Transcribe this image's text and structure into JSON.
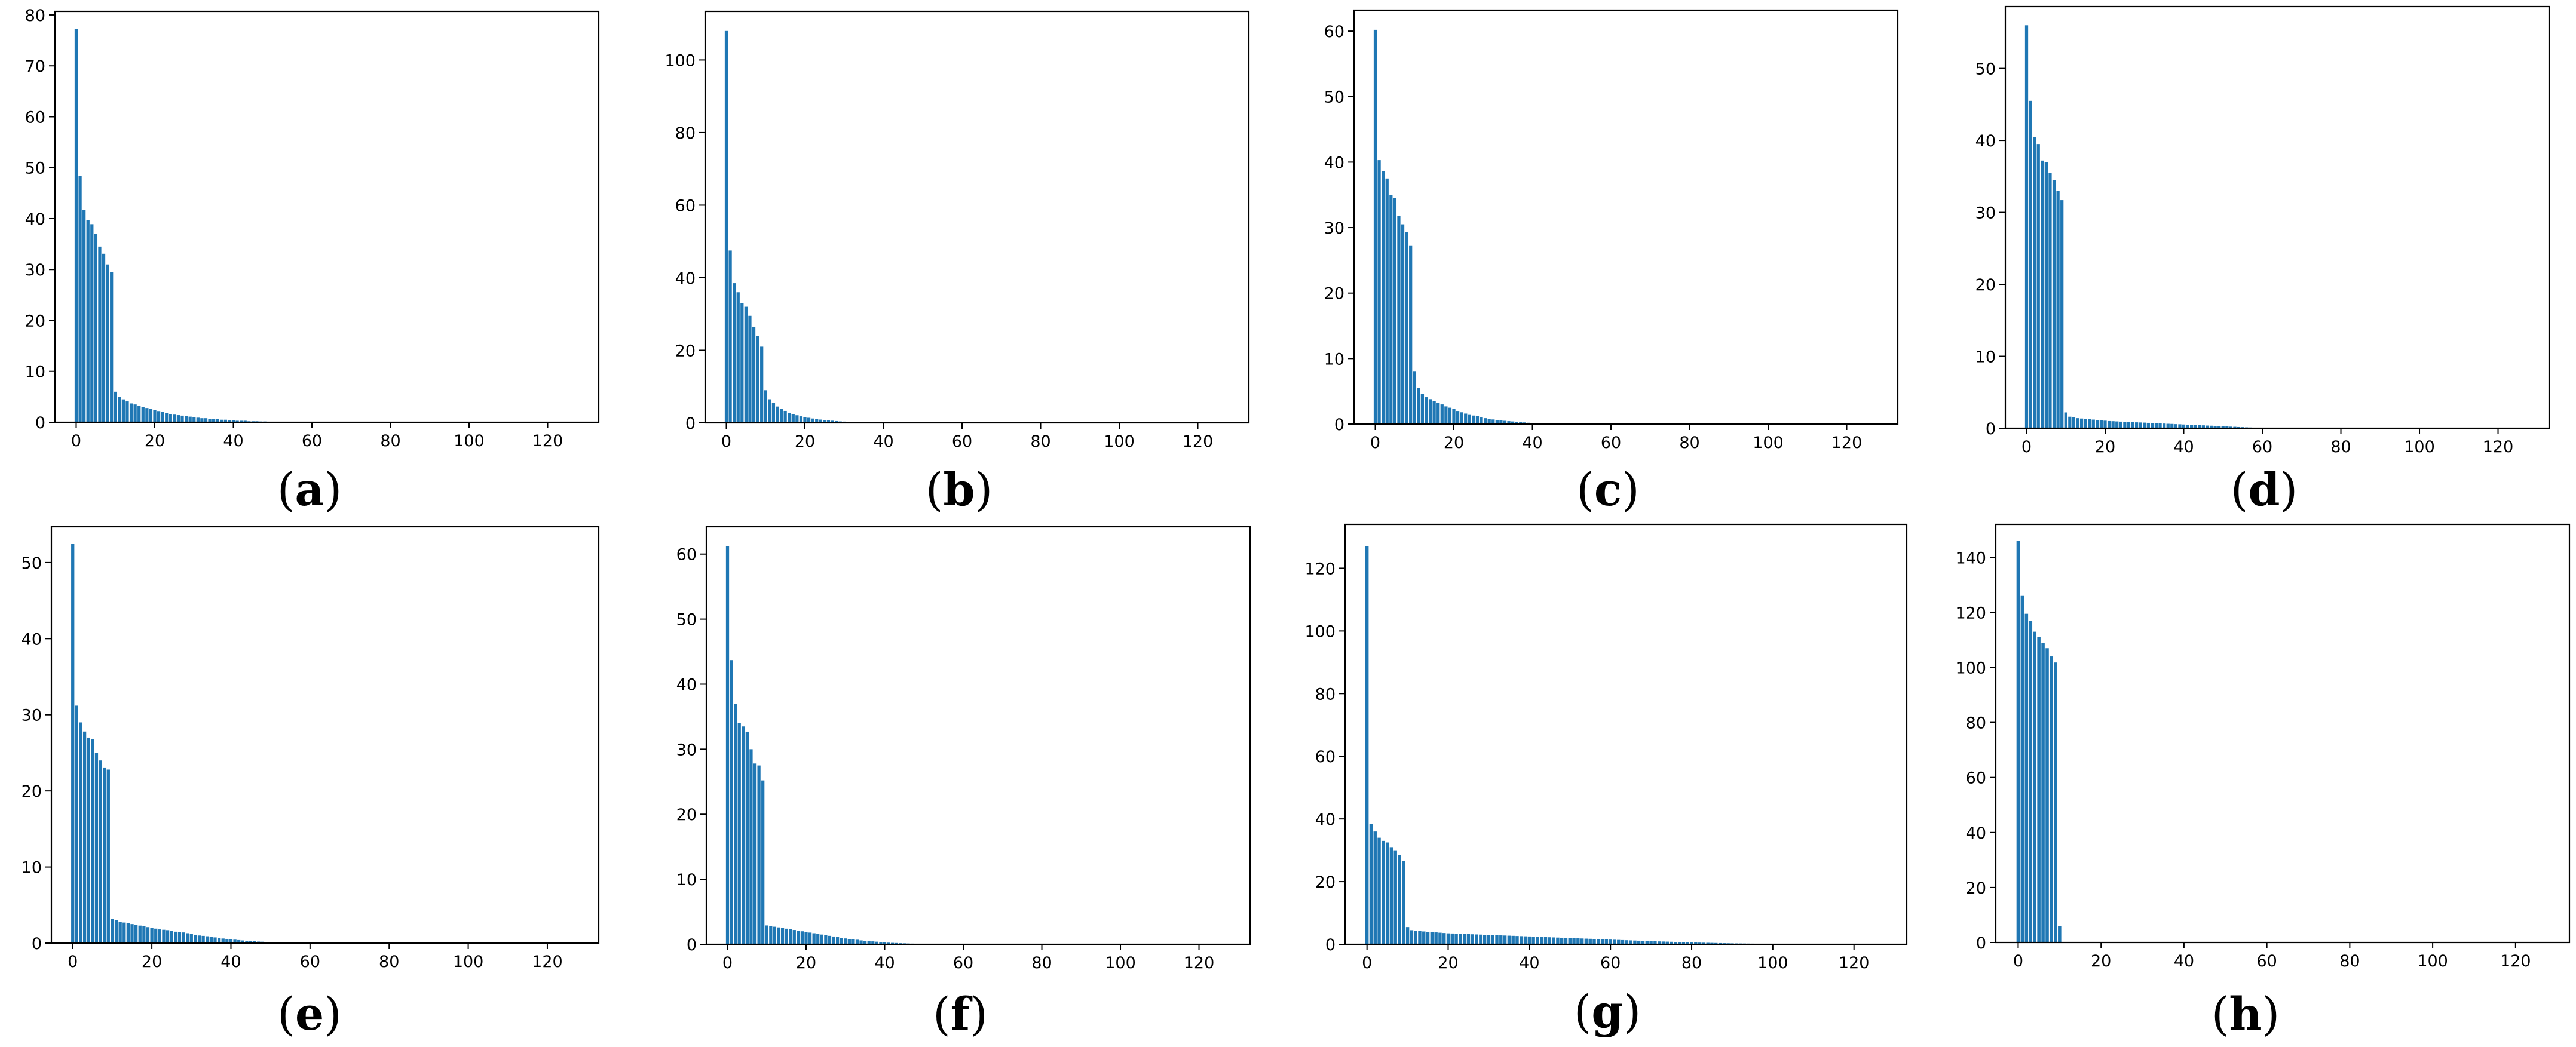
{
  "colors": {
    "bar": "#1f77b4",
    "axes": "#000000",
    "background": "#ffffff"
  },
  "chart_data": [
    {
      "type": "bar",
      "panel_label": "a",
      "title": "",
      "xlabel": "",
      "ylabel": "",
      "grid": false,
      "xlim": [
        -5.4,
        133
      ],
      "ylim": [
        0,
        80.7
      ],
      "xticks": [
        0,
        20,
        40,
        60,
        80,
        100,
        120
      ],
      "yticks": [
        0,
        10,
        20,
        30,
        40,
        50,
        60,
        70,
        80
      ],
      "values": [
        77.2,
        48.4,
        41.7,
        39.7,
        38.9,
        37.0,
        34.5,
        33.1,
        31.0,
        29.5,
        6.0,
        5.0,
        4.5,
        4.1,
        3.7,
        3.5,
        3.2,
        3.0,
        2.8,
        2.6,
        2.4,
        2.2,
        2.0,
        1.8,
        1.6,
        1.5,
        1.4,
        1.3,
        1.2,
        1.1,
        1.0,
        0.9,
        0.8,
        0.8,
        0.7,
        0.6,
        0.6,
        0.5,
        0.5,
        0.4,
        0.4,
        0.3,
        0.3,
        0.3,
        0.2,
        0.2,
        0.2,
        0.15,
        0.15,
        0.1,
        0.1,
        0.1,
        0.08,
        0.06,
        0.05,
        0.04,
        0.03,
        0.02,
        0.02,
        0.01
      ]
    },
    {
      "type": "bar",
      "panel_label": "b",
      "title": "",
      "xlabel": "",
      "ylabel": "",
      "grid": false,
      "xlim": [
        -5.4,
        133
      ],
      "ylim": [
        0,
        113.4
      ],
      "xticks": [
        0,
        20,
        40,
        60,
        80,
        100,
        120
      ],
      "yticks": [
        0,
        20,
        40,
        60,
        80,
        100
      ],
      "values": [
        108.0,
        47.5,
        38.5,
        36.0,
        33.0,
        32.0,
        29.5,
        26.5,
        24.0,
        21.0,
        9.0,
        6.5,
        5.5,
        4.5,
        3.8,
        3.3,
        2.8,
        2.4,
        2.1,
        1.8,
        1.6,
        1.4,
        1.2,
        1.0,
        0.9,
        0.8,
        0.7,
        0.6,
        0.5,
        0.4,
        0.35,
        0.3,
        0.25,
        0.2,
        0.18,
        0.15,
        0.12,
        0.1,
        0.08,
        0.06,
        0.05,
        0.04,
        0.03,
        0.02,
        0.02,
        0.01
      ]
    },
    {
      "type": "bar",
      "panel_label": "c",
      "title": "",
      "xlabel": "",
      "ylabel": "",
      "grid": false,
      "xlim": [
        -5.4,
        133
      ],
      "ylim": [
        0,
        63.2
      ],
      "xticks": [
        0,
        20,
        40,
        60,
        80,
        100,
        120
      ],
      "yticks": [
        0,
        10,
        20,
        30,
        40,
        50,
        60
      ],
      "values": [
        60.2,
        40.3,
        38.6,
        37.5,
        35.0,
        34.5,
        31.8,
        30.5,
        29.3,
        27.2,
        8.0,
        5.5,
        4.6,
        4.1,
        3.8,
        3.5,
        3.2,
        3.0,
        2.7,
        2.5,
        2.3,
        2.0,
        1.8,
        1.6,
        1.4,
        1.3,
        1.2,
        1.0,
        0.9,
        0.8,
        0.7,
        0.6,
        0.55,
        0.5,
        0.45,
        0.4,
        0.35,
        0.3,
        0.25,
        0.2,
        0.18,
        0.15,
        0.13,
        0.11,
        0.1,
        0.08,
        0.07,
        0.06,
        0.05,
        0.04,
        0.03,
        0.03,
        0.02,
        0.02,
        0.01,
        0.01,
        0.01,
        0.01
      ]
    },
    {
      "type": "bar",
      "panel_label": "d",
      "title": "",
      "xlabel": "",
      "ylabel": "",
      "grid": false,
      "xlim": [
        -5.4,
        133
      ],
      "ylim": [
        0,
        58.6
      ],
      "xticks": [
        0,
        20,
        40,
        60,
        80,
        100,
        120
      ],
      "yticks": [
        0,
        10,
        20,
        30,
        40,
        50
      ],
      "values": [
        56.0,
        45.5,
        40.5,
        39.5,
        37.2,
        37.0,
        35.5,
        34.5,
        33.0,
        31.7,
        2.2,
        1.6,
        1.5,
        1.4,
        1.35,
        1.3,
        1.25,
        1.2,
        1.15,
        1.1,
        1.05,
        1.0,
        0.98,
        0.95,
        0.92,
        0.9,
        0.87,
        0.84,
        0.82,
        0.8,
        0.78,
        0.75,
        0.72,
        0.7,
        0.68,
        0.65,
        0.62,
        0.6,
        0.57,
        0.55,
        0.52,
        0.5,
        0.47,
        0.45,
        0.42,
        0.4,
        0.37,
        0.35,
        0.32,
        0.3,
        0.28,
        0.25,
        0.22,
        0.2,
        0.17,
        0.15,
        0.12,
        0.1
      ]
    },
    {
      "type": "bar",
      "panel_label": "e",
      "title": "",
      "xlabel": "",
      "ylabel": "",
      "grid": false,
      "xlim": [
        -5.4,
        133
      ],
      "ylim": [
        0,
        54.7
      ],
      "xticks": [
        0,
        20,
        40,
        60,
        80,
        100,
        120
      ],
      "yticks": [
        0,
        10,
        20,
        30,
        40,
        50
      ],
      "values": [
        52.5,
        31.2,
        29.0,
        27.8,
        27.0,
        26.8,
        25.0,
        24.0,
        23.0,
        22.8,
        3.2,
        3.0,
        2.8,
        2.7,
        2.6,
        2.5,
        2.4,
        2.3,
        2.2,
        2.1,
        2.0,
        1.9,
        1.8,
        1.75,
        1.7,
        1.6,
        1.5,
        1.45,
        1.4,
        1.3,
        1.2,
        1.1,
        1.0,
        0.95,
        0.9,
        0.8,
        0.75,
        0.7,
        0.6,
        0.55,
        0.5,
        0.45,
        0.4,
        0.35,
        0.3,
        0.28,
        0.25,
        0.2,
        0.18,
        0.15,
        0.12,
        0.1,
        0.08,
        0.06,
        0.05,
        0.04,
        0.03,
        0.02
      ]
    },
    {
      "type": "bar",
      "panel_label": "f",
      "title": "",
      "xlabel": "",
      "ylabel": "",
      "grid": false,
      "xlim": [
        -5.4,
        133
      ],
      "ylim": [
        0,
        64.2
      ],
      "xticks": [
        0,
        20,
        40,
        60,
        80,
        100,
        120
      ],
      "yticks": [
        0,
        10,
        20,
        30,
        40,
        50,
        60
      ],
      "values": [
        61.2,
        43.7,
        37.0,
        34.0,
        33.5,
        32.7,
        30.0,
        27.8,
        27.5,
        25.2,
        2.9,
        2.8,
        2.7,
        2.6,
        2.5,
        2.4,
        2.3,
        2.2,
        2.1,
        2.0,
        1.9,
        1.8,
        1.7,
        1.6,
        1.5,
        1.4,
        1.3,
        1.2,
        1.1,
        1.0,
        0.9,
        0.8,
        0.75,
        0.7,
        0.6,
        0.55,
        0.5,
        0.45,
        0.4,
        0.35,
        0.3,
        0.25,
        0.22,
        0.2,
        0.17,
        0.15,
        0.12,
        0.1,
        0.08,
        0.06,
        0.05,
        0.04,
        0.03,
        0.02,
        0.01
      ]
    },
    {
      "type": "bar",
      "panel_label": "g",
      "title": "",
      "xlabel": "",
      "ylabel": "",
      "grid": false,
      "xlim": [
        -5.4,
        133
      ],
      "ylim": [
        0,
        134
      ],
      "xticks": [
        0,
        20,
        40,
        60,
        80,
        100,
        120
      ],
      "yticks": [
        0,
        20,
        40,
        60,
        80,
        100,
        120
      ],
      "values": [
        127.0,
        38.5,
        36.0,
        34.0,
        33.0,
        32.5,
        31.0,
        30.0,
        28.5,
        26.5,
        5.5,
        4.5,
        4.3,
        4.2,
        4.1,
        4.0,
        3.9,
        3.8,
        3.7,
        3.6,
        3.5,
        3.45,
        3.4,
        3.35,
        3.3,
        3.25,
        3.2,
        3.15,
        3.1,
        3.05,
        3.0,
        2.95,
        2.9,
        2.85,
        2.8,
        2.75,
        2.7,
        2.65,
        2.6,
        2.55,
        2.5,
        2.45,
        2.4,
        2.35,
        2.3,
        2.25,
        2.2,
        2.15,
        2.1,
        2.05,
        2.0,
        1.95,
        1.9,
        1.85,
        1.8,
        1.75,
        1.7,
        1.65,
        1.6,
        1.55,
        1.5,
        1.45,
        1.4,
        1.35,
        1.3,
        1.25,
        1.2,
        1.15,
        1.1,
        1.05,
        1.0,
        0.96,
        0.92,
        0.88,
        0.84,
        0.8,
        0.76,
        0.72,
        0.68,
        0.64,
        0.6,
        0.57,
        0.54,
        0.51,
        0.48,
        0.45,
        0.42,
        0.39,
        0.36,
        0.33,
        0.3,
        0.28,
        0.26,
        0.24,
        0.22,
        0.2,
        0.18,
        0.16,
        0.14,
        0.12,
        0.11,
        0.1,
        0.09,
        0.08,
        0.07,
        0.06,
        0.05,
        0.04,
        0.04,
        0.03,
        0.03,
        0.02,
        0.02,
        0.02,
        0.01,
        0.01,
        0.01,
        0.01,
        0.01,
        0.01
      ]
    },
    {
      "type": "bar",
      "panel_label": "h",
      "title": "",
      "xlabel": "",
      "ylabel": "",
      "grid": false,
      "xlim": [
        -5.4,
        133
      ],
      "ylim": [
        0,
        152
      ],
      "xticks": [
        0,
        20,
        40,
        60,
        80,
        100,
        120
      ],
      "yticks": [
        0,
        20,
        40,
        60,
        80,
        100,
        120,
        140
      ],
      "values": [
        146.0,
        126.0,
        119.5,
        117.0,
        113.0,
        111.0,
        109.0,
        107.0,
        104.0,
        101.8,
        6.0
      ]
    }
  ]
}
